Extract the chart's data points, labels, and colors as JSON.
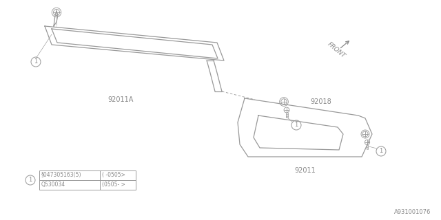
{
  "bg_color": "#ffffff",
  "line_color": "#999999",
  "text_color": "#888888",
  "diagram_id": "A931001076",
  "labels": {
    "part1": "92011A",
    "part2": "92018",
    "part3": "92011",
    "front": "FRONT"
  },
  "table": {
    "row1_col1": "§047305163(5)",
    "row1_col2": "( -0505>",
    "row2_col1": "Q530034",
    "row2_col2": "(0505- >"
  }
}
